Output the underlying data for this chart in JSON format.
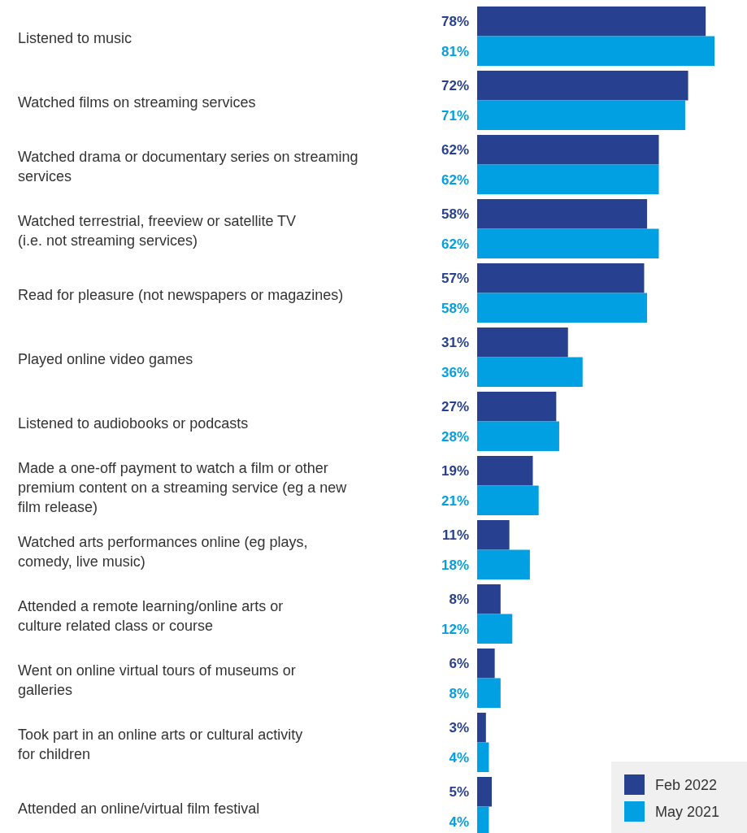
{
  "chart_data": {
    "type": "bar",
    "orientation": "horizontal",
    "legend": "bottom right",
    "categories": [
      "Listened to music",
      "Watched films on streaming services",
      "Watched drama or documentary series on streaming services",
      "Watched terrestrial, freeview or satellite TV (i.e. not streaming services)",
      "Read for pleasure (not newspapers or magazines)",
      "Played online video games",
      "Listened to audiobooks or podcasts",
      "Made a one-off payment to watch a film or other premium content on a streaming service (eg a new film release)",
      "Watched arts performances online (eg plays, comedy, live music)",
      "Attended a remote learning/online arts or culture related class or course",
      "Went on online virtual tours of museums or galleries",
      "Took part in an online arts or cultural activity for children",
      "Attended an online/virtual film festival"
    ],
    "series": [
      {
        "name": "Feb 2022",
        "color": "#27408f",
        "values": [
          78,
          72,
          62,
          58,
          57,
          31,
          27,
          19,
          11,
          8,
          6,
          3,
          5
        ],
        "value_labels": [
          "78%",
          "72%",
          "62%",
          "58%",
          "57%",
          "31%",
          "27%",
          "19%",
          "11%",
          "8%",
          "6%",
          "3%",
          "5%"
        ]
      },
      {
        "name": "May 2021",
        "color": "#00a0e3",
        "values": [
          81,
          71,
          62,
          62,
          58,
          36,
          28,
          21,
          18,
          12,
          8,
          4,
          4
        ],
        "value_labels": [
          "81%",
          "71%",
          "62%",
          "62%",
          "58%",
          "36%",
          "28%",
          "21%",
          "18%",
          "12%",
          "8%",
          "4%",
          "4%"
        ]
      }
    ]
  }
}
